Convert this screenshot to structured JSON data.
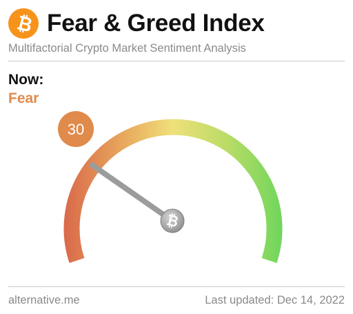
{
  "header": {
    "title": "Fear & Greed Index",
    "subtitle": "Multifactorial Crypto Market Sentiment Analysis",
    "logo_icon": "bitcoin-icon"
  },
  "current": {
    "label": "Now:",
    "classification": "Fear",
    "value": 30,
    "value_text": "30",
    "scale_min": 0,
    "scale_max": 100
  },
  "colors": {
    "fear_accent": "#e08a4c",
    "bitcoin_orange": "#f7931a",
    "gauge_low": "#d9674a",
    "gauge_mid": "#efe07a",
    "gauge_high": "#6fd65c",
    "needle": "#9c9c9c"
  },
  "footer": {
    "source": "alternative.me",
    "last_updated": "Last updated: Dec 14, 2022"
  }
}
